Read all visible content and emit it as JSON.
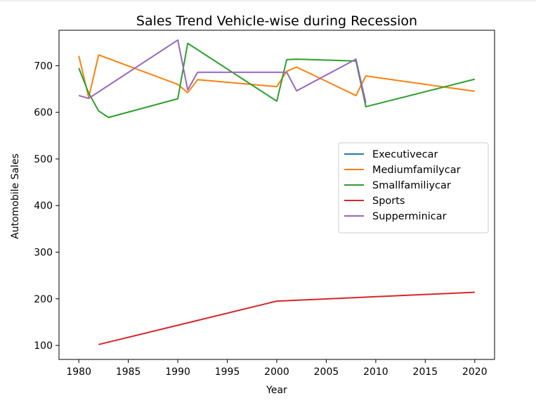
{
  "chart_data": {
    "type": "line",
    "title": "Sales Trend Vehicle-wise during Recession",
    "xlabel": "Year",
    "ylabel": "Automobile Sales",
    "xlim": [
      1978.0,
      2022.0
    ],
    "ylim": [
      70,
      776
    ],
    "xticks": [
      1980,
      1985,
      1990,
      1995,
      2000,
      2005,
      2010,
      2015,
      2020
    ],
    "yticks": [
      100,
      200,
      300,
      400,
      500,
      600,
      700
    ],
    "grid": false,
    "legend_position": "center-right",
    "series": [
      {
        "name": "Executivecar",
        "color": "#1f77b4",
        "points": []
      },
      {
        "name": "Mediumfamilycar",
        "color": "#ff7f0e",
        "points": [
          [
            1980,
            721
          ],
          [
            1981,
            632
          ],
          [
            1982,
            723
          ],
          [
            1990,
            660
          ],
          [
            1991,
            642
          ],
          [
            1992,
            670
          ],
          [
            2000,
            655
          ],
          [
            2001,
            688
          ],
          [
            2002,
            697
          ],
          [
            2008,
            636
          ],
          [
            2009,
            678
          ],
          [
            2020,
            645
          ]
        ]
      },
      {
        "name": "Smallfamiliycar",
        "color": "#2ca02c",
        "points": [
          [
            1980,
            695
          ],
          [
            1981,
            641
          ],
          [
            1982,
            603
          ],
          [
            1983,
            589
          ],
          [
            1990,
            629
          ],
          [
            1991,
            748
          ],
          [
            2000,
            624
          ],
          [
            2001,
            713
          ],
          [
            2002,
            714
          ],
          [
            2008,
            710
          ],
          [
            2009,
            612
          ],
          [
            2020,
            671
          ]
        ]
      },
      {
        "name": "Sports",
        "color": "#d62728",
        "points": [
          [
            1982,
            102
          ],
          [
            2000,
            195
          ],
          [
            2020,
            214
          ]
        ]
      },
      {
        "name": "Supperminicar",
        "color": "#9467bd",
        "points": [
          [
            1980,
            636
          ],
          [
            1981,
            630
          ],
          [
            1990,
            755
          ],
          [
            1991,
            648
          ],
          [
            1992,
            686
          ],
          [
            2000,
            686
          ],
          [
            2001,
            686
          ],
          [
            2002,
            646
          ],
          [
            2008,
            714
          ],
          [
            2009,
            620
          ]
        ]
      }
    ]
  }
}
